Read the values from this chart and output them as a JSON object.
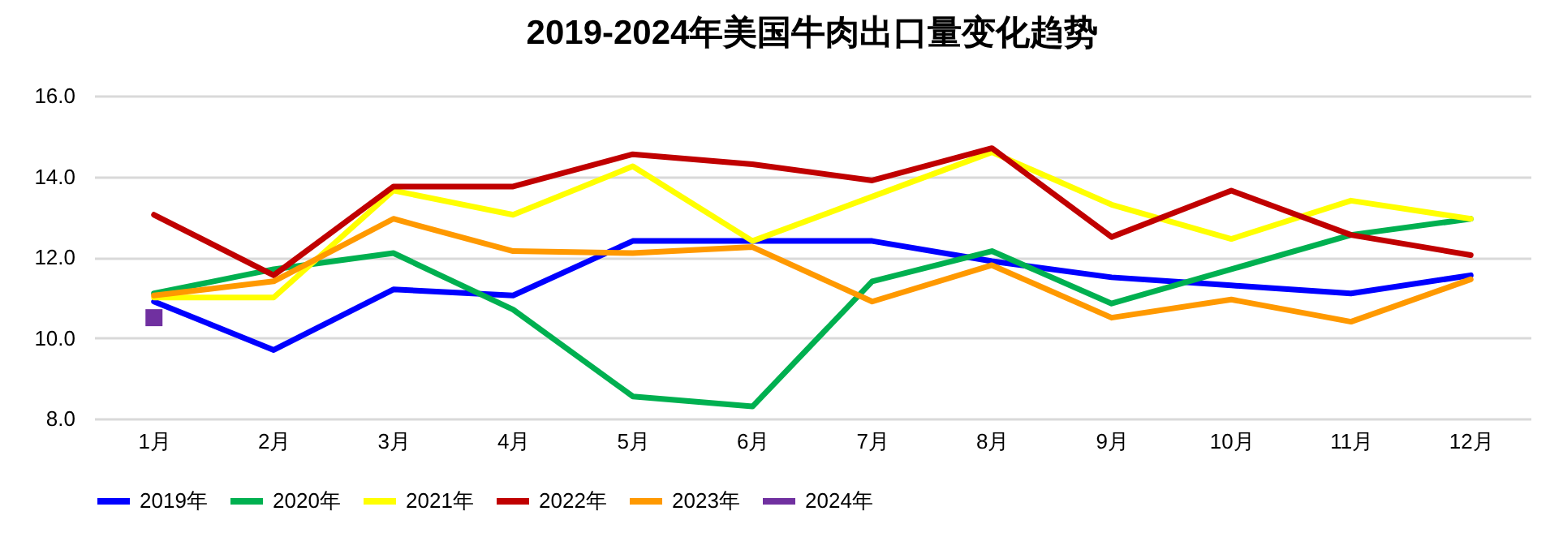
{
  "chart_data": {
    "type": "line",
    "title": "2019-2024年美国牛肉出口量变化趋势",
    "categories": [
      "1月",
      "2月",
      "3月",
      "4月",
      "5月",
      "6月",
      "7月",
      "8月",
      "9月",
      "10月",
      "11月",
      "12月"
    ],
    "series": [
      {
        "name": "2019年",
        "color": "#0000ff",
        "values": [
          10.9,
          9.7,
          11.2,
          11.05,
          12.4,
          12.4,
          12.4,
          11.9,
          11.5,
          11.3,
          11.1,
          11.55
        ]
      },
      {
        "name": "2020年",
        "color": "#00b050",
        "values": [
          11.1,
          11.7,
          12.1,
          10.7,
          8.55,
          8.3,
          11.4,
          12.15,
          10.85,
          11.7,
          12.55,
          12.95
        ]
      },
      {
        "name": "2021年",
        "color": "#ffff00",
        "values": [
          11.0,
          11.0,
          13.65,
          13.05,
          14.25,
          12.4,
          13.5,
          14.6,
          13.3,
          12.45,
          13.4,
          12.95
        ]
      },
      {
        "name": "2022年",
        "color": "#c00000",
        "values": [
          13.05,
          11.55,
          13.75,
          13.75,
          14.55,
          14.3,
          13.9,
          14.7,
          12.5,
          13.65,
          12.55,
          12.05
        ]
      },
      {
        "name": "2023年",
        "color": "#ff9900",
        "values": [
          11.05,
          11.4,
          12.95,
          12.15,
          12.1,
          12.25,
          10.9,
          11.8,
          10.5,
          10.95,
          10.4,
          11.45
        ]
      },
      {
        "name": "2024年",
        "color": "#7030a0",
        "marker": "square",
        "values": [
          10.5,
          null,
          null,
          null,
          null,
          null,
          null,
          null,
          null,
          null,
          null,
          null
        ]
      }
    ],
    "ylim": [
      8,
      16
    ],
    "yticks": [
      {
        "value": 8,
        "label": "8.0"
      },
      {
        "value": 10,
        "label": "10.0"
      },
      {
        "value": 12,
        "label": "12.0"
      },
      {
        "value": 14,
        "label": "14.0"
      },
      {
        "value": 16,
        "label": "16.0"
      }
    ],
    "grid": "y",
    "legend": "bottom",
    "line_style": "solid",
    "marker": "none"
  }
}
